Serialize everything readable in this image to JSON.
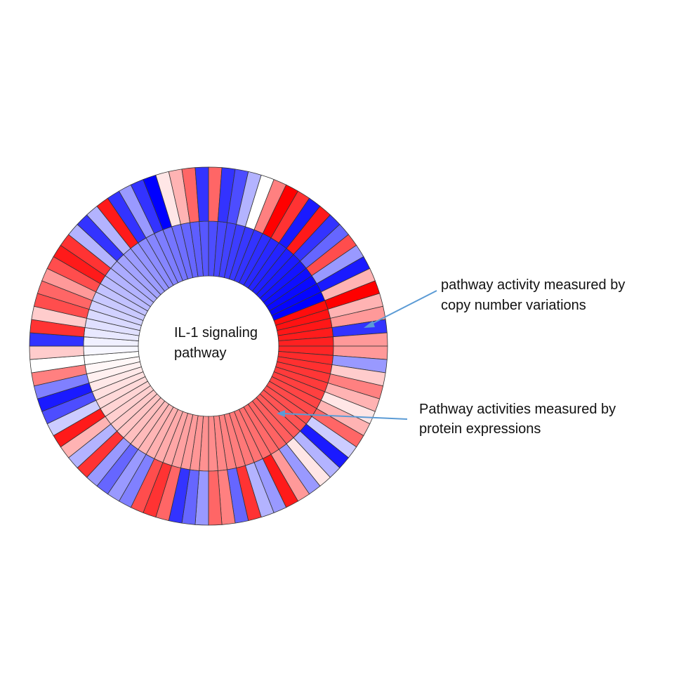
{
  "chart_data": {
    "type": "heatmap",
    "layout": "circular",
    "center_label": [
      "IL-1 signaling",
      "pathway"
    ],
    "color_scale": {
      "negative": "#0000ff",
      "zero": "#ffffff",
      "positive": "#ff0000",
      "range": [
        -1,
        1
      ]
    },
    "rings": [
      {
        "name": "Pathway activities measured by protein expressions",
        "values": [
          -0.7,
          -0.72,
          -0.74,
          -0.76,
          -0.78,
          -0.8,
          -0.82,
          -0.84,
          -0.86,
          -0.88,
          -0.9,
          -0.92,
          -0.94,
          -0.96,
          -0.98,
          -1.0,
          0.95,
          0.93,
          0.91,
          0.89,
          0.87,
          0.85,
          0.83,
          0.81,
          0.79,
          0.77,
          0.75,
          0.73,
          0.71,
          0.69,
          0.67,
          0.65,
          0.63,
          0.61,
          0.59,
          0.57,
          0.55,
          0.53,
          0.51,
          0.49,
          0.47,
          0.45,
          0.43,
          0.41,
          0.39,
          0.37,
          0.35,
          0.33,
          0.31,
          0.29,
          0.27,
          0.25,
          0.23,
          0.21,
          0.19,
          0.17,
          0.15,
          0.12,
          0.09,
          0.06,
          0.03,
          0.0,
          -0.03,
          -0.06,
          -0.09,
          -0.12,
          -0.15,
          -0.18,
          -0.21,
          -0.24,
          -0.27,
          -0.3,
          -0.33,
          -0.36,
          -0.39,
          -0.42,
          -0.45,
          -0.48,
          -0.51,
          -0.54,
          -0.57,
          -0.6,
          -0.63,
          -0.66
        ]
      },
      {
        "name": "pathway activity measured by copy number variations",
        "values": [
          0.6,
          -0.8,
          -0.7,
          -0.3,
          0.0,
          0.5,
          1.0,
          0.8,
          -0.9,
          0.9,
          -0.8,
          -0.6,
          0.7,
          -0.4,
          -0.9,
          0.3,
          1.0,
          0.3,
          0.4,
          -0.8,
          0.4,
          0.4,
          -0.4,
          0.2,
          0.5,
          0.3,
          0.1,
          0.3,
          0.6,
          -0.2,
          -0.9,
          -0.3,
          0.1,
          -0.4,
          0.4,
          0.9,
          -0.4,
          -0.3,
          0.8,
          -0.6,
          0.5,
          0.6,
          -0.4,
          -0.6,
          -0.8,
          0.6,
          0.8,
          0.7,
          -0.5,
          -0.4,
          -0.6,
          -0.4,
          0.8,
          -0.3,
          0.3,
          0.9,
          -0.2,
          -0.7,
          -0.9,
          -0.5,
          0.5,
          0.0,
          0.2,
          -0.8,
          0.8,
          0.2,
          0.7,
          0.6,
          0.4,
          0.7,
          0.9,
          0.8,
          -0.3,
          -0.8,
          -0.3,
          0.9,
          -0.8,
          -0.4,
          -0.8,
          -1.0,
          0.1,
          0.3,
          0.6,
          -0.8
        ]
      }
    ],
    "annotations": [
      {
        "lines": [
          "pathway activity measured by",
          "copy number variations"
        ],
        "target_ring": 1,
        "arrow_color": "#5b9bd5"
      },
      {
        "lines": [
          "Pathway activities measured by",
          "protein expressions"
        ],
        "target_ring": 0,
        "arrow_color": "#5b9bd5"
      }
    ]
  }
}
